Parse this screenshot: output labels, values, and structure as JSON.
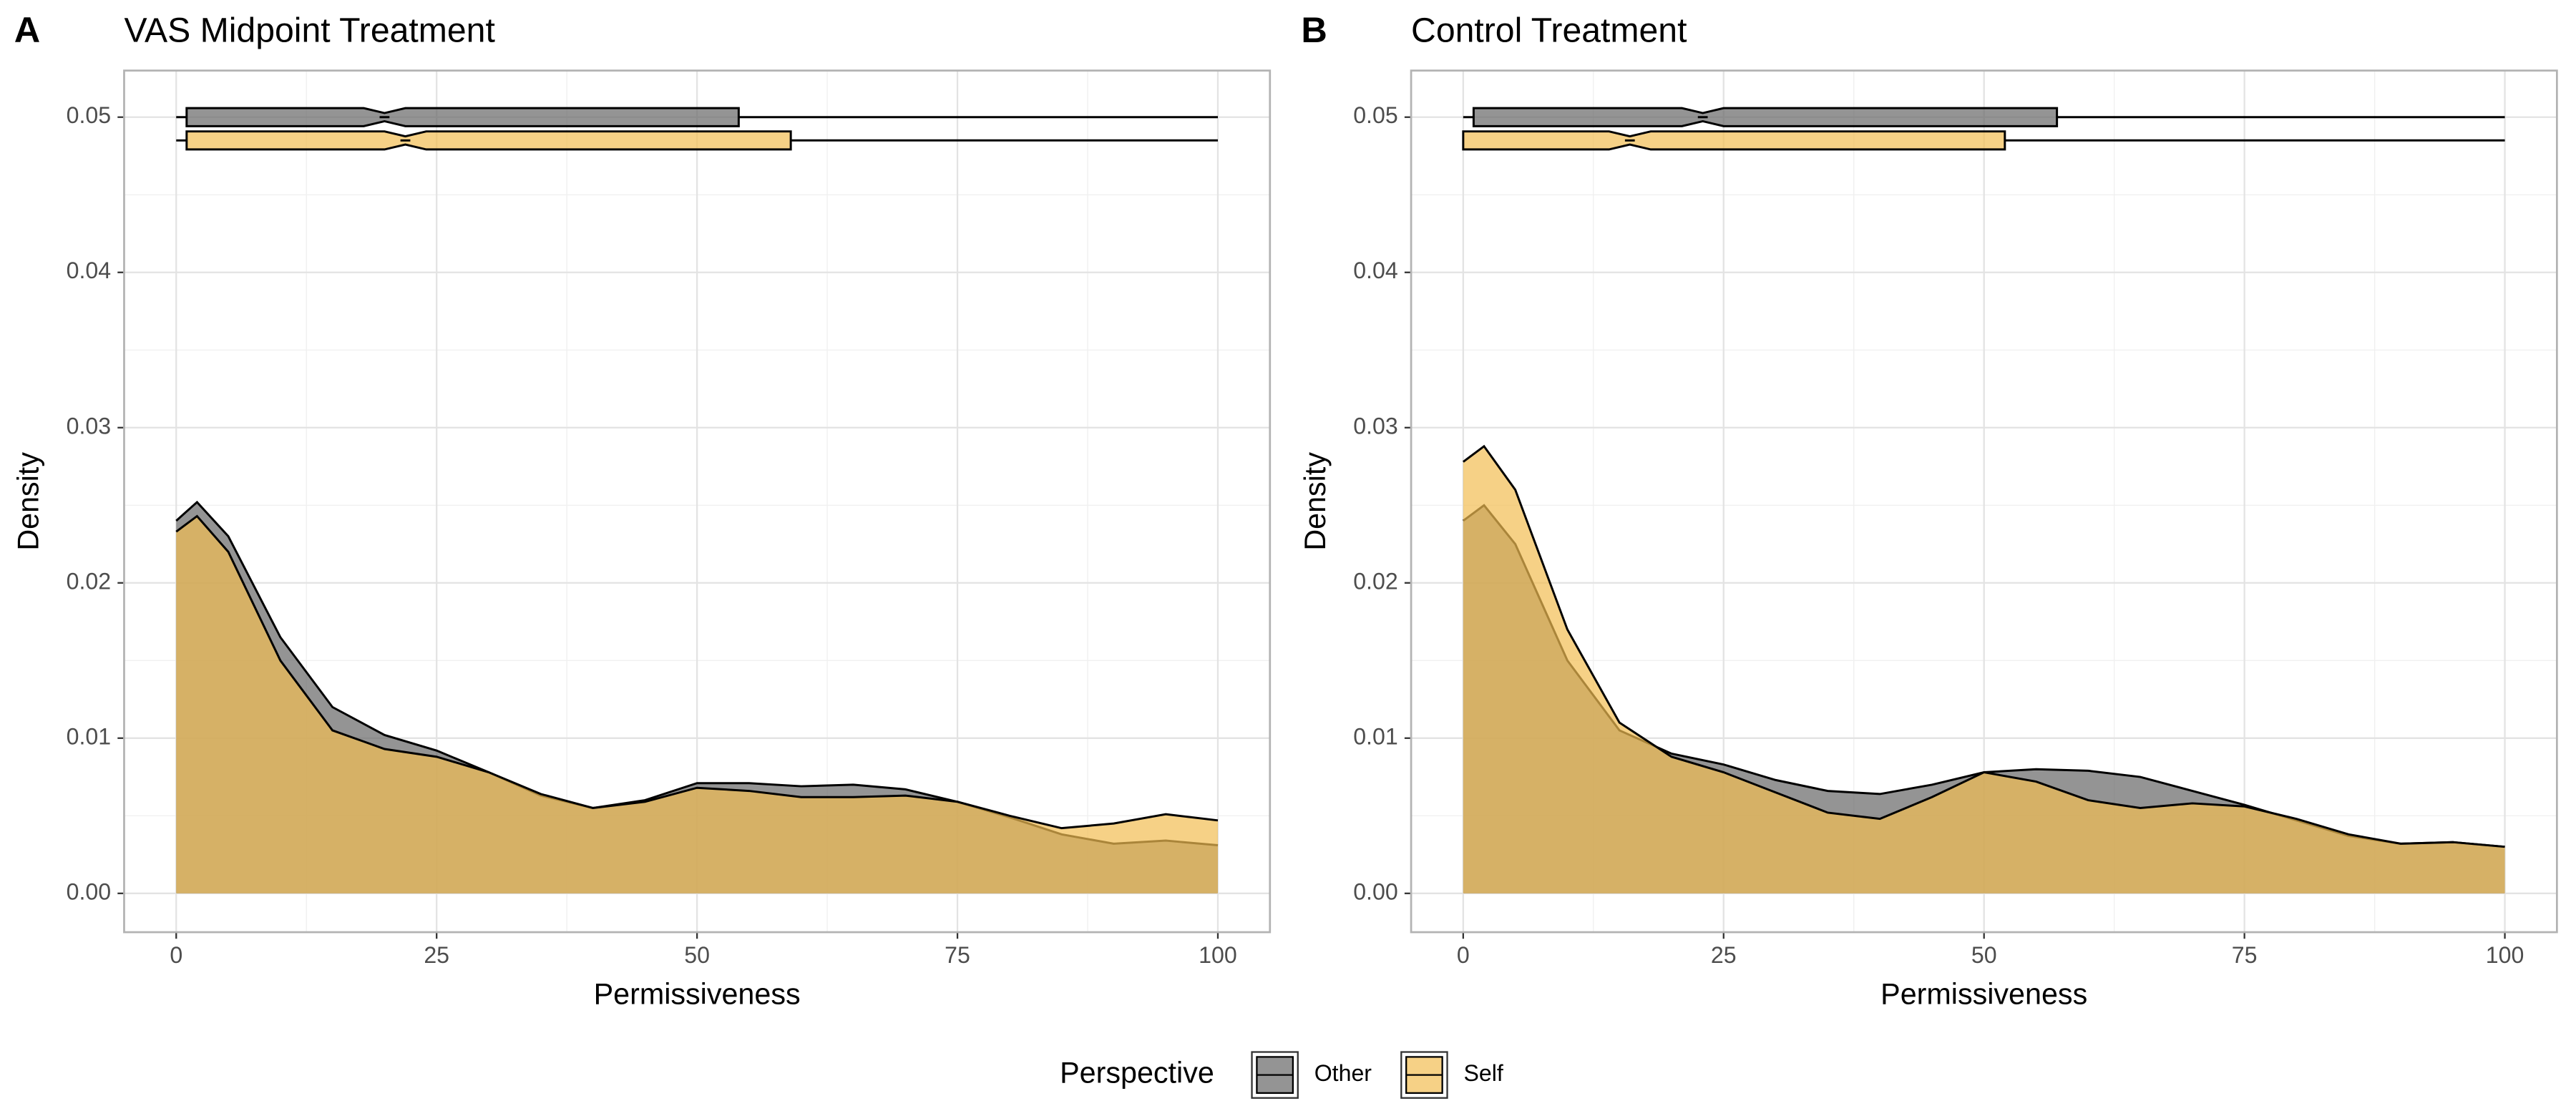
{
  "chart_data": [
    {
      "type": "density",
      "tag": "A",
      "title": "VAS Midpoint Treatment",
      "x_label": "Permissiveness",
      "y_label": "Density",
      "xlim": [
        -5,
        105
      ],
      "ylim": [
        -0.0025,
        0.053
      ],
      "xticks": [
        0,
        25,
        50,
        75,
        100
      ],
      "yticks": [
        {
          "value": 0,
          "label": "0.00"
        },
        0.01,
        0.02,
        0.03,
        0.04,
        0.05
      ],
      "grid": true,
      "minor_grid": true,
      "x": [
        0,
        2,
        5,
        10,
        15,
        20,
        25,
        30,
        35,
        40,
        45,
        50,
        55,
        60,
        65,
        70,
        75,
        80,
        85,
        90,
        95,
        100
      ],
      "series": [
        {
          "name": "Other",
          "color": "#666666",
          "values": [
            0.024,
            0.0252,
            0.023,
            0.0165,
            0.012,
            0.0102,
            0.0092,
            0.0078,
            0.0063,
            0.0055,
            0.006,
            0.0071,
            0.0071,
            0.0069,
            0.007,
            0.0067,
            0.0059,
            0.0049,
            0.0038,
            0.0032,
            0.0034,
            0.0031
          ],
          "box": {
            "min": 0,
            "q1": 1,
            "median": 20,
            "q3": 54,
            "max": 100
          }
        },
        {
          "name": "Self",
          "color": "#F2BE52",
          "values": [
            0.0233,
            0.0243,
            0.022,
            0.015,
            0.0105,
            0.0093,
            0.0088,
            0.0078,
            0.0064,
            0.0055,
            0.0059,
            0.0068,
            0.0066,
            0.0062,
            0.0062,
            0.0063,
            0.0059,
            0.005,
            0.0042,
            0.0045,
            0.0051,
            0.0047
          ],
          "box": {
            "min": 0,
            "q1": 1,
            "median": 22,
            "q3": 59,
            "max": 100
          }
        }
      ]
    },
    {
      "type": "density",
      "tag": "B",
      "title": "Control Treatment",
      "x_label": "Permissiveness",
      "y_label": "Density",
      "xlim": [
        -5,
        105
      ],
      "ylim": [
        -0.0025,
        0.053
      ],
      "xticks": [
        0,
        25,
        50,
        75,
        100
      ],
      "yticks": [
        {
          "value": 0,
          "label": "0.00"
        },
        0.01,
        0.02,
        0.03,
        0.04,
        0.05
      ],
      "grid": true,
      "minor_grid": true,
      "x": [
        0,
        2,
        5,
        10,
        15,
        20,
        25,
        30,
        35,
        40,
        45,
        50,
        55,
        60,
        65,
        70,
        75,
        80,
        85,
        90,
        95,
        100
      ],
      "series": [
        {
          "name": "Other",
          "color": "#666666",
          "values": [
            0.024,
            0.025,
            0.0225,
            0.015,
            0.0105,
            0.009,
            0.0083,
            0.0073,
            0.0066,
            0.0064,
            0.007,
            0.0078,
            0.008,
            0.0079,
            0.0075,
            0.0066,
            0.0057,
            0.0047,
            0.0037,
            0.0032,
            0.0033,
            0.003
          ],
          "box": {
            "min": 0,
            "q1": 1,
            "median": 23,
            "q3": 57,
            "max": 100
          }
        },
        {
          "name": "Self",
          "color": "#F2BE52",
          "values": [
            0.0278,
            0.0288,
            0.026,
            0.017,
            0.011,
            0.0088,
            0.0078,
            0.0065,
            0.0052,
            0.0048,
            0.0062,
            0.0078,
            0.0072,
            0.006,
            0.0055,
            0.0058,
            0.0056,
            0.0048,
            0.0038,
            0.0032,
            0.0033,
            0.003
          ],
          "box": {
            "min": 0,
            "q1": 0,
            "median": 16,
            "q3": 52,
            "max": 100
          }
        }
      ]
    }
  ],
  "legend": {
    "title": "Perspective",
    "position": "bottom"
  }
}
